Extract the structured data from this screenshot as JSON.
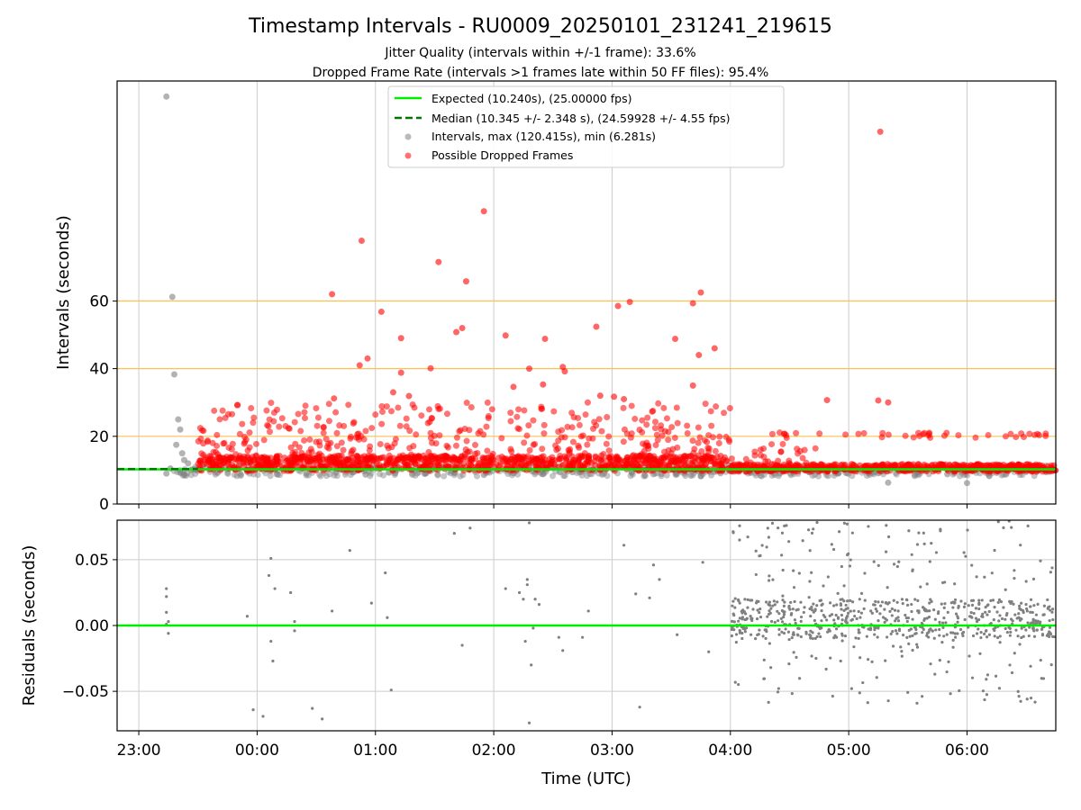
{
  "figure": {
    "title": "Timestamp Intervals - RU0009_20250101_231241_219615",
    "subtitle_lines": [
      "Jitter Quality (intervals within +/-1 frame): 33.6%",
      "Dropped Frame Rate (intervals >1 frames late within 50 FF files): 95.4%"
    ]
  },
  "colors": {
    "expected": "#00ee00",
    "median": "#007700",
    "intervals": "#808080",
    "dropped": "#ff0000",
    "threshold": "#ffc04d",
    "grid": "#cccccc"
  },
  "chart_data": [
    {
      "type": "scatter",
      "panel": "intervals",
      "ylabel": "Intervals (seconds)",
      "xlim": [
        "22:49",
        "06:45"
      ],
      "ylim": [
        0,
        125
      ],
      "yticks": [
        0,
        20,
        40,
        60
      ],
      "xticks": [
        "23:00",
        "00:00",
        "01:00",
        "02:00",
        "03:00",
        "04:00",
        "05:00",
        "06:00"
      ],
      "grid": true,
      "threshold_lines": [
        20,
        40,
        60
      ],
      "legend": {
        "placement": "top-center",
        "entries": [
          "Expected (10.240s), (25.00000 fps)",
          "Median (10.345 +/- 2.348 s), (24.59928 +/- 4.55 fps)",
          "Intervals, max (120.415s), min (6.281s)",
          "Possible Dropped Frames"
        ]
      },
      "expected_line": {
        "y": 10.24,
        "x_range": [
          "22:49",
          "06:45"
        ]
      },
      "median_line": {
        "y": 10.345,
        "x_range": [
          "22:49",
          "23:30"
        ]
      },
      "series": [
        {
          "name": "Intervals, max (120.415s), min (6.281s)",
          "points": [
            [
              "23:14",
              120.4
            ],
            [
              "23:17",
              61.2
            ],
            [
              "23:18",
              38.3
            ],
            [
              "23:20",
              25
            ],
            [
              "23:21",
              22
            ],
            [
              "23:19",
              17.5
            ],
            [
              "23:22",
              15
            ],
            [
              "23:23",
              13
            ],
            [
              "23:16",
              10.5
            ],
            [
              "23:14",
              9
            ],
            [
              "23:25",
              12
            ],
            [
              "23:27",
              10.2
            ],
            [
              "23:30",
              9.8
            ],
            [
              "23:40",
              9.2
            ],
            [
              "23:55",
              9.5
            ],
            [
              "00:10",
              8.8
            ],
            [
              "00:25",
              9
            ],
            [
              "00:40",
              9.3
            ],
            [
              "00:55",
              8.7
            ],
            [
              "01:10",
              9.1
            ],
            [
              "01:25",
              8.9
            ],
            [
              "01:40",
              9.2
            ],
            [
              "01:55",
              8.6
            ],
            [
              "02:10",
              9.1
            ],
            [
              "02:25",
              8.8
            ],
            [
              "02:40",
              9.4
            ],
            [
              "02:55",
              8.7
            ],
            [
              "03:10",
              9.2
            ],
            [
              "03:25",
              8.9
            ],
            [
              "03:40",
              8.4
            ],
            [
              "03:45",
              8.2
            ],
            [
              "03:55",
              9.1
            ],
            [
              "04:10",
              9.3
            ],
            [
              "04:25",
              9
            ],
            [
              "04:40",
              9.4
            ],
            [
              "04:55",
              9.2
            ],
            [
              "05:10",
              9.1
            ],
            [
              "05:20",
              6.3
            ],
            [
              "05:35",
              9.3
            ],
            [
              "05:50",
              8.8
            ],
            [
              "06:00",
              6.2
            ],
            [
              "06:15",
              9.2
            ],
            [
              "06:30",
              9.5
            ],
            [
              "06:40",
              9.4
            ]
          ]
        },
        {
          "name": "Possible Dropped Frames",
          "points": [
            [
              "05:16",
              110
            ],
            [
              "01:55",
              86.5
            ],
            [
              "00:53",
              77.8
            ],
            [
              "01:32",
              71.5
            ],
            [
              "01:46",
              65.8
            ],
            [
              "00:38",
              62
            ],
            [
              "03:45",
              62.5
            ],
            [
              "03:09",
              59.7
            ],
            [
              "03:03",
              58.5
            ],
            [
              "03:41",
              59.3
            ],
            [
              "01:03",
              56.8
            ],
            [
              "02:52",
              52.4
            ],
            [
              "01:41",
              50.8
            ],
            [
              "01:44",
              52
            ],
            [
              "02:06",
              49.8
            ],
            [
              "02:26",
              48.8
            ],
            [
              "03:32",
              48.8
            ],
            [
              "01:13",
              49
            ],
            [
              "03:52",
              46
            ],
            [
              "00:56",
              43
            ],
            [
              "00:52",
              41
            ],
            [
              "01:28",
              40.1
            ],
            [
              "03:44",
              44
            ],
            [
              "02:35",
              40.5
            ],
            [
              "01:13",
              38.8
            ],
            [
              "02:18",
              40
            ],
            [
              "00:39",
              31.2
            ],
            [
              "01:09",
              33
            ],
            [
              "03:41",
              35
            ],
            [
              "02:10",
              34.6
            ],
            [
              "02:25",
              35.3
            ],
            [
              "02:54",
              32
            ],
            [
              "01:17",
              31.9
            ],
            [
              "02:36",
              39.2
            ],
            [
              "04:49",
              30.7
            ],
            [
              "05:15",
              30.6
            ],
            [
              "05:20",
              30
            ],
            [
              "03:01",
              31.7
            ],
            [
              "03:06",
              31
            ]
          ],
          "band": {
            "x_range": [
              "23:30",
              "06:45"
            ],
            "dense_y_range": [
              9.8,
              13
            ],
            "sparse_y_max": 30
          }
        }
      ]
    },
    {
      "type": "scatter",
      "panel": "residuals",
      "xlabel": "Time (UTC)",
      "ylabel": "Residuals (seconds)",
      "xlim": [
        "22:49",
        "06:45"
      ],
      "ylim": [
        -0.08,
        0.08
      ],
      "yticks": [
        -0.05,
        0.0,
        0.05
      ],
      "ytick_labels": [
        "−0.05",
        "0.00",
        "0.05"
      ],
      "xticks": [
        "23:00",
        "00:00",
        "01:00",
        "02:00",
        "03:00",
        "04:00",
        "05:00",
        "06:00"
      ],
      "grid": true,
      "zero_line": 0,
      "series": [
        {
          "name": "",
          "points": [
            [
              "23:14",
              0.028
            ],
            [
              "23:14",
              0.022
            ],
            [
              "23:14",
              0.01
            ],
            [
              "23:15",
              0.003
            ],
            [
              "23:15",
              -0.006
            ],
            [
              "23:14",
              0.001
            ],
            [
              "23:58",
              -0.064
            ],
            [
              "23:55",
              0.007
            ],
            [
              "00:03",
              -0.069
            ],
            [
              "00:06",
              0.038
            ],
            [
              "00:07",
              0.051
            ],
            [
              "00:07",
              -0.012
            ],
            [
              "00:08",
              -0.027
            ],
            [
              "00:09",
              0.028
            ],
            [
              "00:17",
              0.025
            ],
            [
              "00:19",
              -0.004
            ],
            [
              "00:19",
              0.003
            ],
            [
              "00:28",
              -0.063
            ],
            [
              "00:33",
              -0.071
            ],
            [
              "00:38",
              0.011
            ],
            [
              "00:47",
              0.057
            ],
            [
              "00:58",
              0.017
            ],
            [
              "01:05",
              0.04
            ],
            [
              "01:06",
              0.006
            ],
            [
              "01:08",
              -0.049
            ],
            [
              "01:40",
              0.07
            ],
            [
              "01:44",
              -0.015
            ],
            [
              "01:48",
              0.074
            ],
            [
              "02:06",
              0.028
            ],
            [
              "02:13",
              0.025
            ],
            [
              "02:15",
              0.02
            ],
            [
              "02:16",
              -0.012
            ],
            [
              "02:17",
              0.035
            ],
            [
              "02:17",
              0.031
            ],
            [
              "02:18",
              0.078
            ],
            [
              "02:18",
              -0.074
            ],
            [
              "02:19",
              -0.03
            ],
            [
              "02:20",
              -0.002
            ],
            [
              "02:21",
              0.02
            ],
            [
              "02:23",
              0.016
            ],
            [
              "02:33",
              -0.009
            ],
            [
              "02:35",
              -0.019
            ],
            [
              "02:45",
              -0.009
            ],
            [
              "02:48",
              0.011
            ],
            [
              "03:06",
              0.061
            ],
            [
              "03:12",
              0.024
            ],
            [
              "03:14",
              -0.062
            ],
            [
              "03:19",
              0.021
            ],
            [
              "03:21",
              0.046
            ],
            [
              "03:24",
              0.035
            ],
            [
              "03:33",
              -0.007
            ],
            [
              "03:46",
              0.048
            ],
            [
              "03:49",
              -0.02
            ]
          ],
          "band": {
            "x_range": [
              "04:00",
              "06:45"
            ],
            "dense_y_range": [
              -0.01,
              0.02
            ],
            "sparse_y_range": [
              -0.06,
              0.08
            ]
          }
        }
      ]
    }
  ]
}
